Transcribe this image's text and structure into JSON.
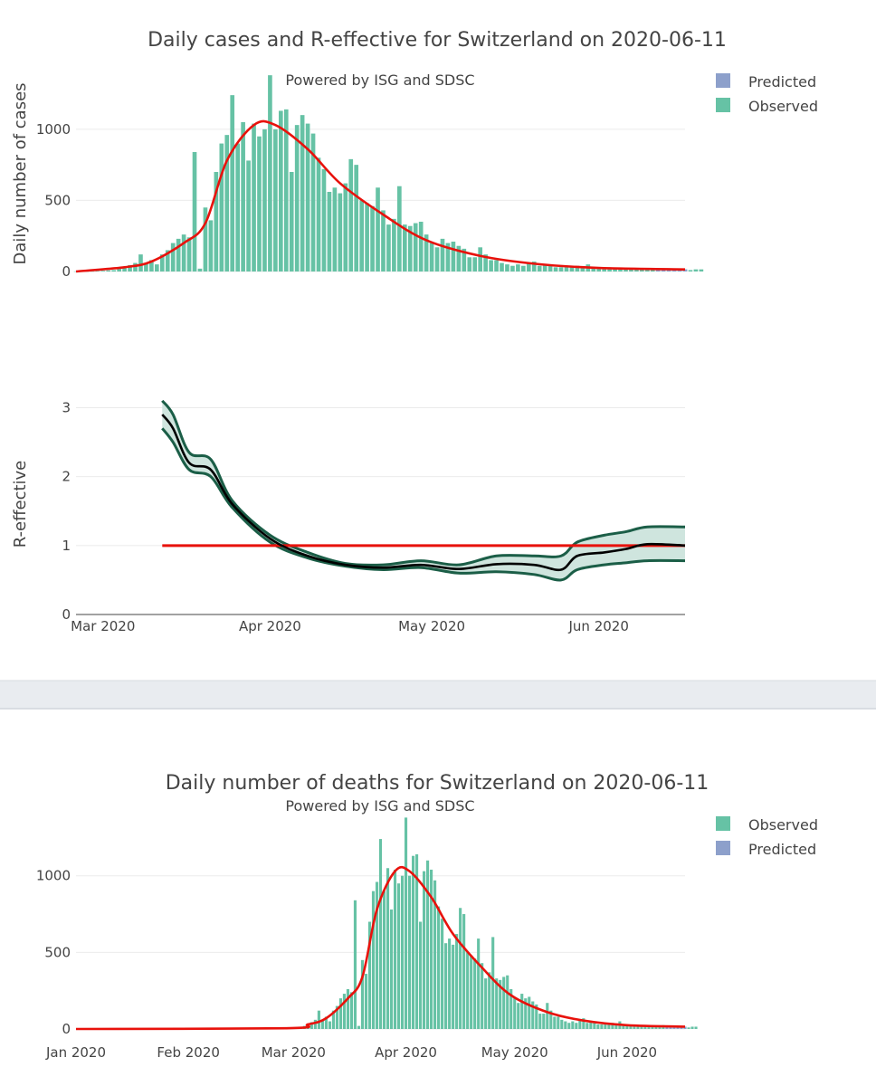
{
  "top_figure": {
    "title": "Daily cases and R-effective for Switzerland on 2020-06-11",
    "subtitle": "Powered by ISG and SDSC",
    "legend": [
      "Predicted",
      "Observed"
    ],
    "colors": {
      "observed": "#66c2a5",
      "predicted": "#8da0cb",
      "fit": "#e8120c",
      "band_edge": "#1b5e47",
      "band_fill": "#cfe5de",
      "median": "#000000",
      "threshold": "#e8120c"
    }
  },
  "bottom_figure": {
    "title": "Daily number of deaths for Switzerland on 2020-06-11",
    "subtitle": "Powered by ISG and SDSC",
    "legend": [
      "Observed",
      "Predicted"
    ]
  },
  "chart_data": [
    {
      "type": "bar",
      "name": "daily-cases",
      "title": "Daily cases and R-effective for Switzerland on 2020-06-11",
      "ylabel": "Daily number of cases",
      "ylim": [
        0,
        1400
      ],
      "yticks": [
        0,
        500,
        1000
      ],
      "x_start": "2020-02-25",
      "x_range": [
        "2020-02-25",
        "2020-06-17"
      ],
      "series": [
        {
          "name": "Observed",
          "values": [
            1,
            1,
            1,
            2,
            3,
            5,
            8,
            10,
            20,
            30,
            45,
            60,
            120,
            60,
            80,
            50,
            120,
            150,
            200,
            230,
            260,
            240,
            840,
            20,
            450,
            360,
            700,
            900,
            960,
            1240,
            900,
            1050,
            780,
            1040,
            950,
            1000,
            1380,
            1000,
            1130,
            1140,
            700,
            1030,
            1100,
            1040,
            970,
            800,
            720,
            560,
            590,
            550,
            620,
            790,
            750,
            500,
            480,
            460,
            590,
            430,
            330,
            370,
            600,
            330,
            320,
            340,
            350,
            260,
            200,
            170,
            230,
            200,
            210,
            180,
            160,
            100,
            100,
            170,
            120,
            80,
            80,
            60,
            50,
            40,
            50,
            40,
            60,
            70,
            40,
            50,
            40,
            30,
            30,
            35,
            35,
            40,
            30,
            50,
            30,
            30,
            20,
            25,
            20,
            20,
            15,
            15,
            20,
            20,
            15,
            25,
            15,
            15,
            10,
            15,
            15,
            15,
            10,
            15,
            15
          ]
        },
        {
          "name": "Predicted",
          "start": "2020-06-12",
          "values": [
            10,
            12,
            14,
            12,
            10,
            15
          ]
        }
      ],
      "fit_line": {
        "name": "Smoothed",
        "x": [
          "2020-02-25",
          "2020-03-05",
          "2020-03-10",
          "2020-03-16",
          "2020-03-20",
          "2020-03-24",
          "2020-03-29",
          "2020-04-02",
          "2020-04-08",
          "2020-04-14",
          "2020-04-22",
          "2020-04-30",
          "2020-05-10",
          "2020-05-20",
          "2020-06-01",
          "2020-06-17"
        ],
        "values": [
          0,
          30,
          70,
          200,
          340,
          780,
          1030,
          1030,
          860,
          620,
          400,
          220,
          110,
          55,
          25,
          15
        ]
      }
    },
    {
      "type": "line",
      "name": "r-effective",
      "ylabel": "R-effective",
      "ylim": [
        0,
        3.4
      ],
      "yticks": [
        0,
        1,
        2,
        3
      ],
      "x_range": [
        "2020-02-25",
        "2020-06-17"
      ],
      "xticks": [
        "Mar 2020",
        "Apr 2020",
        "May 2020",
        "Jun 2020"
      ],
      "x": [
        "2020-03-12",
        "2020-03-14",
        "2020-03-17",
        "2020-03-21",
        "2020-03-25",
        "2020-04-01",
        "2020-04-08",
        "2020-04-15",
        "2020-04-22",
        "2020-04-29",
        "2020-05-06",
        "2020-05-13",
        "2020-05-20",
        "2020-05-25",
        "2020-05-28",
        "2020-06-02",
        "2020-06-06",
        "2020-06-10",
        "2020-06-17"
      ],
      "median": [
        2.9,
        2.7,
        2.2,
        2.1,
        1.6,
        1.1,
        0.85,
        0.72,
        0.68,
        0.72,
        0.66,
        0.73,
        0.72,
        0.65,
        0.85,
        0.9,
        0.95,
        1.02,
        1.0
      ],
      "upper": [
        3.1,
        2.9,
        2.35,
        2.25,
        1.65,
        1.15,
        0.9,
        0.74,
        0.72,
        0.78,
        0.72,
        0.85,
        0.85,
        0.85,
        1.05,
        1.15,
        1.2,
        1.27,
        1.27
      ],
      "lower": [
        2.7,
        2.5,
        2.1,
        2.0,
        1.55,
        1.05,
        0.82,
        0.7,
        0.65,
        0.68,
        0.6,
        0.62,
        0.58,
        0.5,
        0.65,
        0.72,
        0.75,
        0.78,
        0.78
      ],
      "threshold": {
        "value": 1,
        "x": [
          "2020-03-12",
          "2020-06-17"
        ]
      }
    },
    {
      "type": "bar",
      "name": "daily-deaths",
      "title": "Daily number of deaths for Switzerland on 2020-06-11",
      "ylim": [
        0,
        1400
      ],
      "yticks": [
        0,
        500,
        1000
      ],
      "x_range": [
        "2020-01-01",
        "2020-06-17"
      ],
      "xticks": [
        "Jan 2020",
        "Feb 2020",
        "Mar 2020",
        "Apr 2020",
        "May 2020",
        "Jun 2020"
      ],
      "x_start": "2020-02-25",
      "series": [
        {
          "name": "Observed",
          "values": [
            1,
            1,
            1,
            2,
            3,
            5,
            8,
            10,
            20,
            30,
            45,
            60,
            120,
            60,
            80,
            50,
            120,
            150,
            200,
            230,
            260,
            240,
            840,
            20,
            450,
            360,
            700,
            900,
            960,
            1240,
            900,
            1050,
            780,
            1040,
            950,
            1000,
            1380,
            1000,
            1130,
            1140,
            700,
            1030,
            1100,
            1040,
            970,
            800,
            720,
            560,
            590,
            550,
            620,
            790,
            750,
            500,
            480,
            460,
            590,
            430,
            330,
            370,
            600,
            330,
            320,
            340,
            350,
            260,
            200,
            170,
            230,
            200,
            210,
            180,
            160,
            100,
            100,
            170,
            120,
            80,
            80,
            60,
            50,
            40,
            50,
            40,
            60,
            70,
            40,
            50,
            40,
            30,
            30,
            35,
            35,
            40,
            30,
            50,
            30,
            30,
            20,
            25,
            20,
            20,
            15,
            15,
            20,
            20,
            15,
            25,
            15,
            15,
            10,
            15,
            15,
            15,
            10,
            15,
            15
          ]
        },
        {
          "name": "Predicted",
          "start": "2020-06-12",
          "values": [
            10,
            12,
            14,
            12,
            10,
            15
          ]
        }
      ],
      "fit_line": {
        "name": "Smoothed",
        "x": [
          "2020-01-01",
          "2020-02-28",
          "2020-03-05",
          "2020-03-10",
          "2020-03-16",
          "2020-03-20",
          "2020-03-24",
          "2020-03-29",
          "2020-04-02",
          "2020-04-08",
          "2020-04-14",
          "2020-04-22",
          "2020-04-30",
          "2020-05-10",
          "2020-05-20",
          "2020-06-01",
          "2020-06-17"
        ],
        "values": [
          0,
          5,
          30,
          70,
          200,
          340,
          780,
          1030,
          1030,
          860,
          620,
          400,
          220,
          110,
          55,
          25,
          15
        ]
      }
    }
  ]
}
